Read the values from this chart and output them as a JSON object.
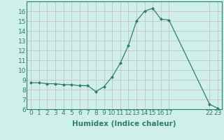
{
  "x": [
    0,
    1,
    2,
    3,
    4,
    5,
    6,
    7,
    8,
    9,
    10,
    11,
    12,
    13,
    14,
    15,
    16,
    17,
    22,
    23
  ],
  "y": [
    8.7,
    8.7,
    8.6,
    8.6,
    8.5,
    8.5,
    8.4,
    8.4,
    7.8,
    8.3,
    9.3,
    10.7,
    12.5,
    15.0,
    16.0,
    16.3,
    15.2,
    15.1,
    6.5,
    6.1
  ],
  "xticks": [
    0,
    1,
    2,
    3,
    4,
    5,
    6,
    7,
    8,
    9,
    10,
    11,
    12,
    13,
    14,
    15,
    16,
    17,
    22,
    23
  ],
  "xlim": [
    -0.5,
    23.5
  ],
  "ylim": [
    6,
    17
  ],
  "yticks": [
    6,
    7,
    8,
    9,
    10,
    11,
    12,
    13,
    14,
    15,
    16
  ],
  "xlabel": "Humidex (Indice chaleur)",
  "line_color": "#2e7d6e",
  "marker": "D",
  "marker_size": 2.0,
  "background_color": "#cff0ea",
  "grid_color": "#c8b8b8",
  "label_fontsize": 7.5,
  "tick_fontsize": 6.5
}
